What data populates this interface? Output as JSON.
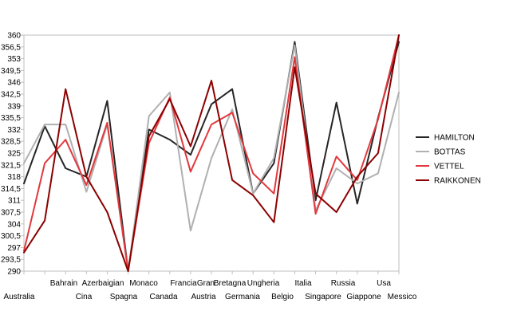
{
  "chart_data": {
    "type": "line",
    "categories": [
      "Australia",
      "Bahrain",
      "Cina",
      "Azerbaigian",
      "Spagna",
      "Monaco",
      "Canada",
      "Francia",
      "Austria",
      "Gran Bretagna",
      "Germania",
      "Ungheria",
      "Belgio",
      "Italia",
      "Singapore",
      "Russia",
      "Giappone",
      "Usa",
      "Messico"
    ],
    "x_tick_labels": [
      "Australia",
      "Bahrain",
      "Cina",
      "Azerbaigian",
      "Spagna",
      "Monaco",
      "Canada",
      "Francia",
      "Gran",
      "Austria",
      "Bretagna",
      "Germania",
      "Ungheria",
      "Belgio",
      "Italia",
      "Singapore",
      "Russia",
      "Giappone",
      "Usa",
      "Messico"
    ],
    "y_tick_labels": [
      "360",
      "356,5",
      "353",
      "349,5",
      "346",
      "342,5",
      "339",
      "335,5",
      "332",
      "328,5",
      "325",
      "321,5",
      "318",
      "314,5",
      "311",
      "307,5",
      "304",
      "300,5",
      "297",
      "293,5",
      "290"
    ],
    "ylim": [
      290,
      360
    ],
    "grid": false,
    "legend_position": "right",
    "series": [
      {
        "name": "HAMILTON",
        "color": "#262626",
        "values": [
          316,
          333,
          320.5,
          318,
          340.5,
          290,
          332,
          329,
          324.5,
          339.5,
          344,
          313,
          322,
          358,
          311,
          340,
          310,
          335.5,
          358
        ]
      },
      {
        "name": "BOTTAS",
        "color": "#b0b0b0",
        "values": [
          322,
          333.5,
          333.5,
          313.5,
          333.5,
          290,
          336,
          343,
          302,
          323.5,
          338,
          313,
          323.5,
          357,
          308,
          320.5,
          316,
          319,
          343
        ]
      },
      {
        "name": "VETTEL",
        "color": "#e0393e",
        "values": [
          296,
          322,
          329,
          315.5,
          334,
          290,
          328,
          341.5,
          319.5,
          333.5,
          337,
          319,
          313,
          353.5,
          307,
          324,
          317,
          335,
          360
        ]
      },
      {
        "name": "RAIKKONEN",
        "color": "#8b0000",
        "values": [
          295.5,
          305,
          344,
          318,
          307.5,
          290,
          330,
          341,
          327,
          346.5,
          317,
          312.5,
          304.5,
          350.5,
          313,
          307.5,
          318,
          325,
          360
        ]
      }
    ]
  }
}
